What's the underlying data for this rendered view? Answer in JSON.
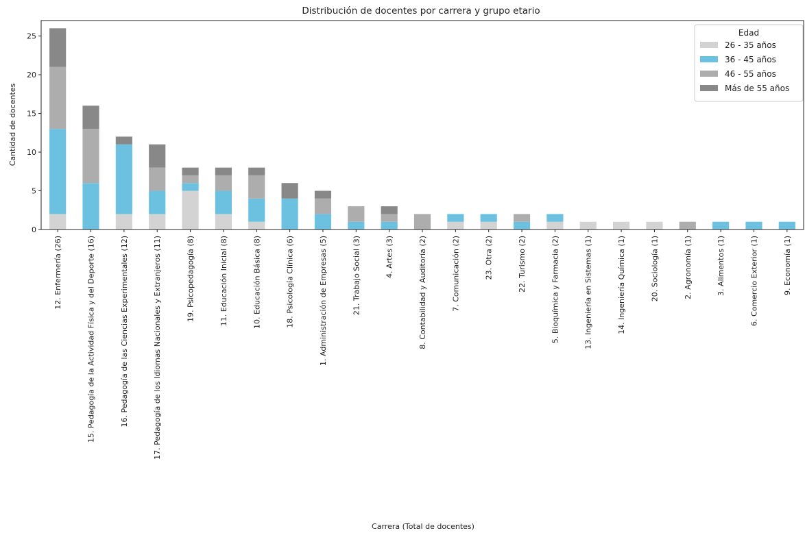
{
  "chart_data": {
    "type": "bar",
    "stacked": true,
    "title": "Distribución de docentes por carrera y grupo etario",
    "xlabel": "Carrera (Total de docentes)",
    "ylabel": "Cantidad de docentes",
    "ylim": [
      0,
      27
    ],
    "yticks": [
      0,
      5,
      10,
      15,
      20,
      25
    ],
    "grid": false,
    "legend_title": "Edad",
    "legend_position": "top-right",
    "categories": [
      "12. Enfermería (26)",
      "15. Pedagogía de la Actividad Física y del Deporte (16)",
      "16. Pedagogía de las Ciencias Experimentales (12)",
      "17. Pedagogía de los Idiomas Nacionales y Extranjeros (11)",
      "19. Psicopedagogía (8)",
      "11. Educación Inicial (8)",
      "10. Educación Básica (8)",
      "18. Psicología Clínica (6)",
      "1. Administración de Empresas (5)",
      "21. Trabajo Social (3)",
      "4. Artes (3)",
      "8. Contabilidad y Auditoría (2)",
      "7. Comunicación (2)",
      "23. Otra (2)",
      "22. Turismo (2)",
      "5. Bioquímica y Farmacia (2)",
      "13. Ingeniería en Sistemas (1)",
      "14. Ingeniería Química (1)",
      "20. Sociología (1)",
      "2. Agronomía (1)",
      "3. Alimentos (1)",
      "6. Comercio Exterior (1)",
      "9. Economía (1)"
    ],
    "series": [
      {
        "name": "26 - 35 años",
        "color": "#d3d3d3",
        "values": [
          2,
          0,
          2,
          2,
          5,
          2,
          1,
          0,
          0,
          0,
          0,
          0,
          1,
          1,
          0,
          1,
          1,
          1,
          1,
          0,
          0,
          0,
          0
        ]
      },
      {
        "name": "36 - 45 años",
        "color": "#6cc1e0",
        "values": [
          11,
          6,
          9,
          3,
          1,
          3,
          3,
          4,
          2,
          1,
          1,
          0,
          1,
          1,
          1,
          1,
          0,
          0,
          0,
          0,
          1,
          1,
          1
        ]
      },
      {
        "name": "46 - 55 años",
        "color": "#adadad",
        "values": [
          8,
          7,
          0,
          3,
          1,
          2,
          3,
          0,
          2,
          2,
          1,
          2,
          0,
          0,
          1,
          0,
          0,
          0,
          0,
          1,
          0,
          0,
          0
        ]
      },
      {
        "name": "Más de 55 años",
        "color": "#888888",
        "values": [
          5,
          3,
          1,
          3,
          1,
          1,
          1,
          2,
          1,
          0,
          1,
          0,
          0,
          0,
          0,
          0,
          0,
          0,
          0,
          0,
          0,
          0,
          0
        ]
      }
    ]
  }
}
